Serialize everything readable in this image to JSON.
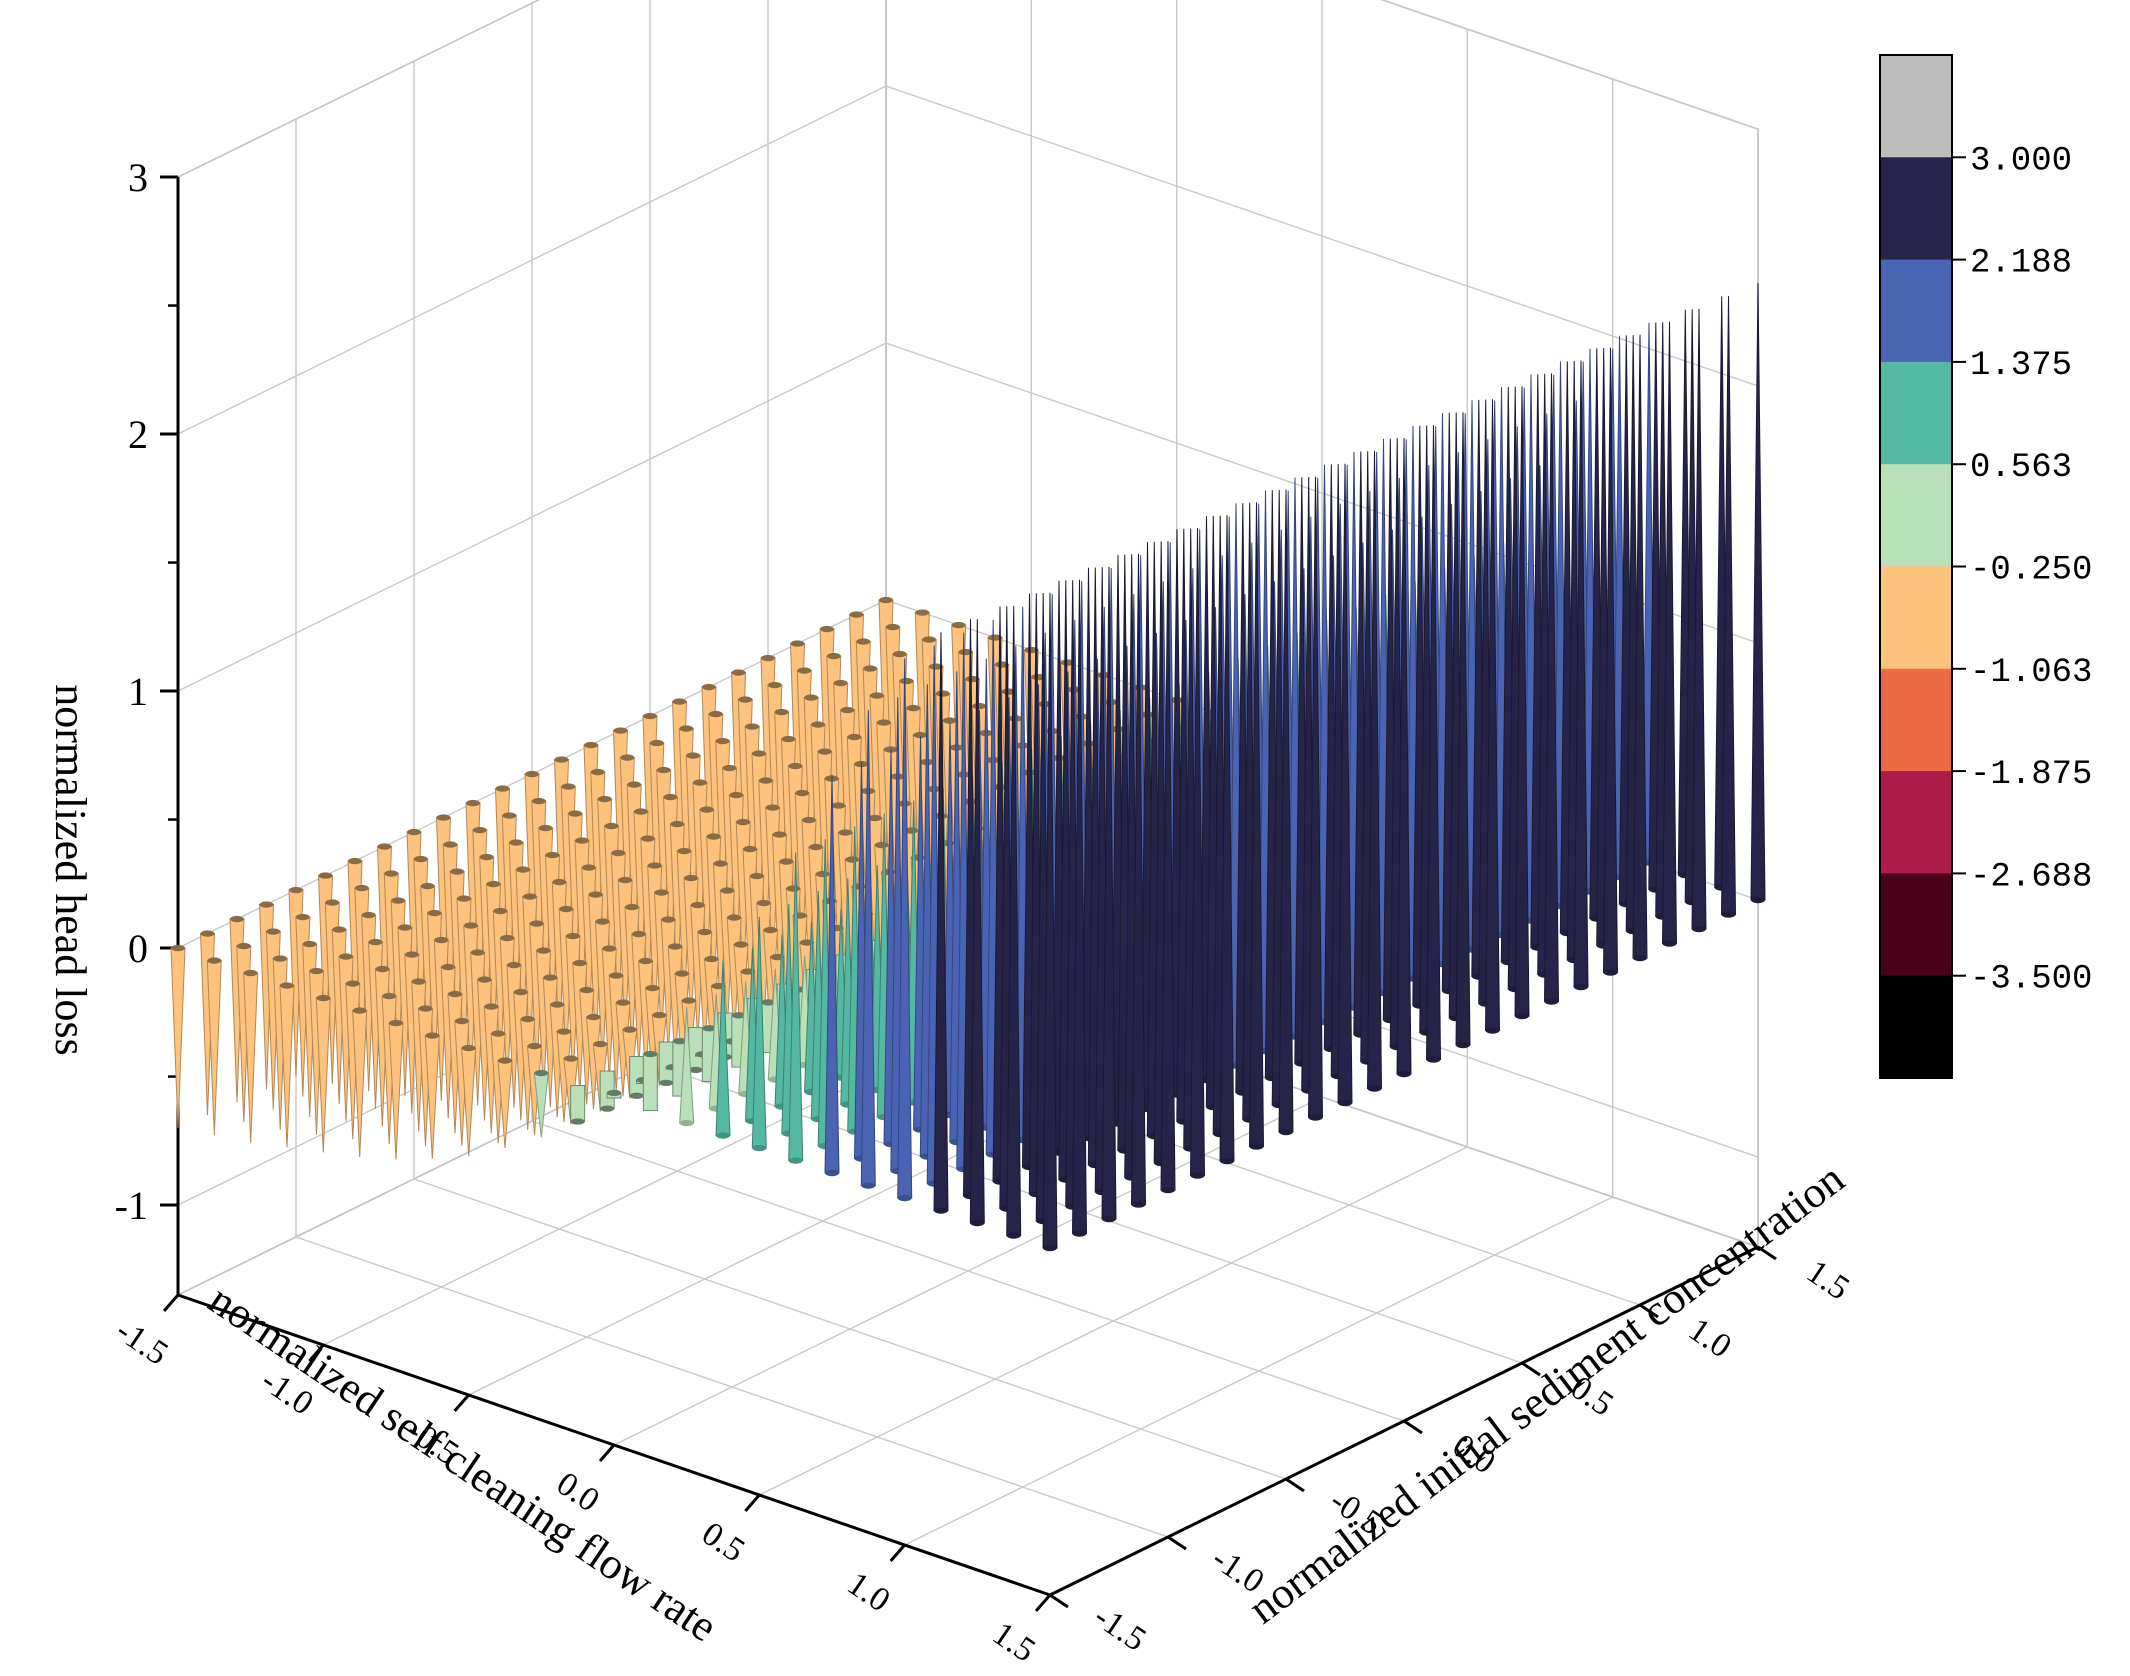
{
  "chart_data": {
    "type": "3d-bar",
    "xlabel": "normalized self cleaning flow rate",
    "ylabel": "normalized initial sediment concentration",
    "zlabel": "normalized head loss",
    "x_ticks": [
      "-1.5",
      "-1.0",
      "-0.5",
      "0.0",
      "0.5",
      "1.0",
      "1.5"
    ],
    "y_ticks": [
      "-1.5",
      "-1.0",
      "-0.5",
      "0.0",
      "0.5",
      "1.0",
      "1.5"
    ],
    "z_ticks": [
      "-1",
      "0",
      "1",
      "2",
      "3"
    ],
    "xlim": [
      -1.5,
      1.5
    ],
    "ylim": [
      -1.5,
      1.5
    ],
    "zlim": [
      -1.35,
      3
    ],
    "grid": true,
    "legend": "right",
    "grid_resolution": 25,
    "surface_description": "stem value rises along self cleaning flow rate and falls slightly along initial sediment concentration",
    "x_values": [
      -1.5,
      -1.375,
      -1.25,
      -1.125,
      -1.0,
      -0.875,
      -0.75,
      -0.625,
      -0.5,
      -0.375,
      -0.25,
      -0.125,
      0.0,
      0.125,
      0.25,
      0.375,
      0.5,
      0.625,
      0.75,
      0.875,
      1.0,
      1.125,
      1.25,
      1.375,
      1.5
    ],
    "z_by_x_at_min_y": [
      -0.7,
      -0.68,
      -0.66,
      -0.63,
      -0.6,
      -0.57,
      -0.53,
      -0.48,
      -0.42,
      -0.34,
      -0.25,
      -0.14,
      0.02,
      0.22,
      0.45,
      0.68,
      0.9,
      1.2,
      1.55,
      1.85,
      2.1,
      2.25,
      2.35,
      2.45,
      2.55
    ],
    "z_change_across_y": -0.15,
    "colorbar": {
      "tick_labels": [
        "3.000",
        "2.188",
        "1.375",
        "0.563",
        "-0.250",
        "-1.063",
        "-1.875",
        "-2.688",
        "-3.500"
      ],
      "bands": [
        {
          "color": "#bdbdbd",
          "min": 3.0,
          "max": null
        },
        {
          "color": "#262449",
          "min": 2.188,
          "max": 3.0
        },
        {
          "color": "#4a64b3",
          "min": 1.375,
          "max": 2.188
        },
        {
          "color": "#55b8a3",
          "min": 0.563,
          "max": 1.375
        },
        {
          "color": "#b9e0b9",
          "min": -0.25,
          "max": 0.563
        },
        {
          "color": "#fdc27c",
          "min": -1.063,
          "max": -0.25
        },
        {
          "color": "#ee6a44",
          "min": -1.875,
          "max": -1.063
        },
        {
          "color": "#ae1a49",
          "min": -2.688,
          "max": -1.875
        },
        {
          "color": "#4a0018",
          "min": -3.5,
          "max": -2.688
        },
        {
          "color": "#000000",
          "min": null,
          "max": -3.5
        }
      ]
    }
  }
}
